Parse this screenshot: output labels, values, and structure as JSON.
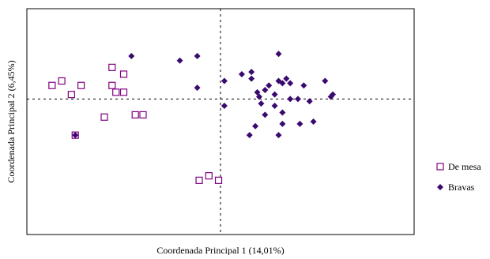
{
  "chart_data": {
    "type": "scatter",
    "title": "",
    "xlabel": "Coordenada Principal 1 (14,01%)",
    "ylabel": "Coordenada Principal 2 (6,45%)",
    "xlim": [
      -10,
      10
    ],
    "ylim": [
      -6,
      4
    ],
    "grid": false,
    "zero_lines": true,
    "legend_position": "right",
    "series": [
      {
        "name": "De mesa",
        "marker": "open-square",
        "color": "#800080",
        "points": [
          [
            -8.7,
            0.6
          ],
          [
            -8.2,
            0.8
          ],
          [
            -7.7,
            0.2
          ],
          [
            -7.2,
            0.6
          ],
          [
            -6.0,
            -0.8
          ],
          [
            -5.6,
            1.4
          ],
          [
            -5.6,
            0.6
          ],
          [
            -5.4,
            0.3
          ],
          [
            -5.0,
            1.1
          ],
          [
            -5.0,
            0.3
          ],
          [
            -4.4,
            -0.7
          ],
          [
            -4.0,
            -0.7
          ],
          [
            -7.5,
            -1.6
          ],
          [
            -1.1,
            -3.6
          ],
          [
            -0.6,
            -3.4
          ],
          [
            -0.1,
            -3.6
          ]
        ]
      },
      {
        "name": "Bravas",
        "marker": "filled-diamond",
        "color": "#3a0a6e",
        "points": [
          [
            -7.5,
            -1.6
          ],
          [
            -4.6,
            1.9
          ],
          [
            -2.1,
            1.7
          ],
          [
            -1.2,
            1.9
          ],
          [
            -1.2,
            0.5
          ],
          [
            0.2,
            0.8
          ],
          [
            0.2,
            -0.3
          ],
          [
            1.1,
            1.1
          ],
          [
            1.6,
            1.2
          ],
          [
            1.6,
            0.9
          ],
          [
            1.9,
            0.3
          ],
          [
            2.0,
            0.1
          ],
          [
            2.3,
            -0.7
          ],
          [
            1.8,
            -1.2
          ],
          [
            1.5,
            -1.6
          ],
          [
            2.1,
            -0.2
          ],
          [
            2.3,
            0.4
          ],
          [
            2.5,
            0.6
          ],
          [
            2.8,
            0.2
          ],
          [
            2.8,
            -0.3
          ],
          [
            3.0,
            0.8
          ],
          [
            3.2,
            0.7
          ],
          [
            3.4,
            0.9
          ],
          [
            3.6,
            0.7
          ],
          [
            3.0,
            2.0
          ],
          [
            3.6,
            0.0
          ],
          [
            3.2,
            -0.6
          ],
          [
            3.2,
            -1.1
          ],
          [
            3.0,
            -1.6
          ],
          [
            4.0,
            0.0
          ],
          [
            4.3,
            0.6
          ],
          [
            4.1,
            -1.1
          ],
          [
            4.6,
            -0.1
          ],
          [
            4.8,
            -1.0
          ],
          [
            5.4,
            0.8
          ],
          [
            5.8,
            0.2
          ],
          [
            5.7,
            0.1
          ]
        ]
      }
    ]
  }
}
